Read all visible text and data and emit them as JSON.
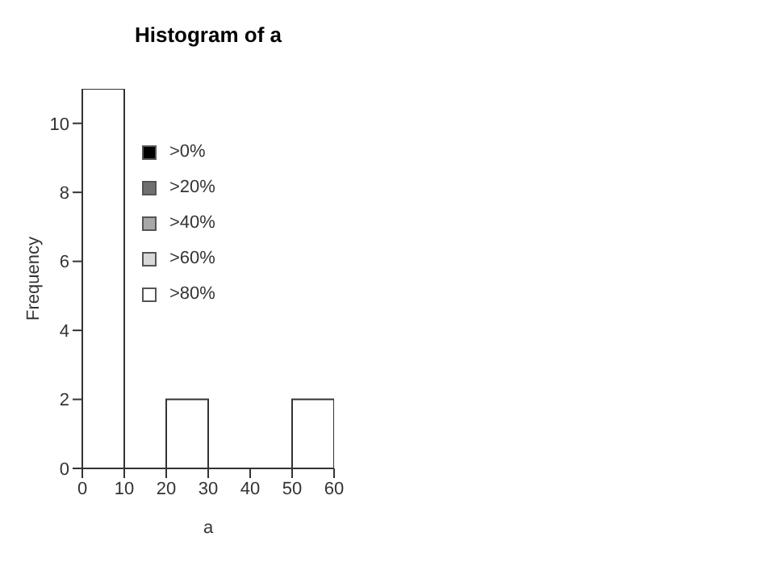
{
  "chart_data": {
    "type": "histogram",
    "title": "Histogram of a",
    "xlabel": "a",
    "ylabel": "Frequency",
    "bins": [
      0,
      10,
      20,
      30,
      40,
      50,
      60
    ],
    "values": [
      11,
      0,
      2,
      0,
      0,
      2
    ],
    "color": "#ffffff",
    "xlim": [
      0,
      60
    ],
    "xticks": [
      0,
      10,
      20,
      30,
      40,
      50,
      60
    ],
    "ylim": [
      0,
      11
    ],
    "yticks": [
      0,
      2,
      4,
      6,
      8,
      10
    ],
    "annotations": [
      ">0%",
      ">20%",
      ">40%",
      ">60%",
      ">80%"
    ]
  }
}
